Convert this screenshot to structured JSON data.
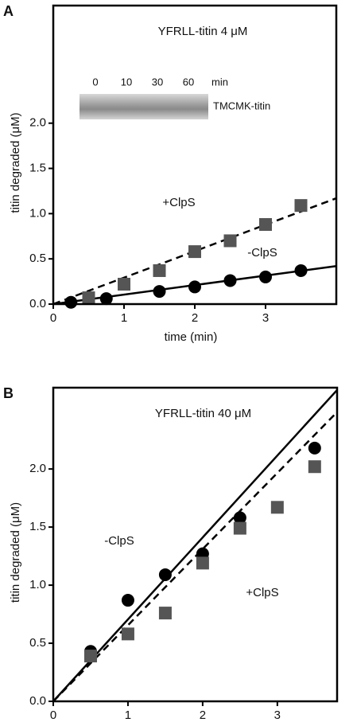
{
  "chart_data": [
    {
      "type": "scatter",
      "panel": "A",
      "title": "YFRLL-titin 4 μM",
      "xlabel": "time (min)",
      "ylabel": "titin degraded (μM)",
      "xlim": [
        0,
        4
      ],
      "ylim": [
        0,
        3.3
      ],
      "xticks": [
        0,
        1,
        2,
        3
      ],
      "yticks": [
        {
          "value": 0,
          "label": "0.0"
        },
        {
          "value": 0.5,
          "label": "0.5"
        },
        {
          "value": 1,
          "label": "1.0"
        },
        {
          "value": 1.5,
          "label": "1.5"
        },
        {
          "value": 2,
          "label": "2.0"
        }
      ],
      "inset": {
        "lanes": [
          "0",
          "10",
          "30",
          "60"
        ],
        "unit": "min",
        "label": "TMCMK-titin"
      },
      "series": [
        {
          "name": "+ClpS",
          "color": "#555555",
          "marker": "square",
          "dash": true,
          "x": [
            0.5,
            1,
            1.5,
            2,
            2.5,
            3,
            3.5
          ],
          "values": [
            0.07,
            0.22,
            0.37,
            0.58,
            0.7,
            0.88,
            1.09
          ],
          "fit_x": [
            0,
            4
          ],
          "fit_values": [
            0,
            1.17
          ]
        },
        {
          "name": "-ClpS",
          "color": "#000000",
          "marker": "circle",
          "dash": false,
          "x": [
            0.25,
            0.75,
            1.5,
            2,
            2.5,
            3,
            3.5
          ],
          "values": [
            0.02,
            0.06,
            0.14,
            0.19,
            0.26,
            0.3,
            0.37
          ],
          "fit_x": [
            0,
            4
          ],
          "fit_values": [
            0,
            0.42
          ]
        }
      ]
    },
    {
      "type": "scatter",
      "panel": "B",
      "title": "YFRLL-titin 40 μM",
      "xlabel": "time (min)",
      "ylabel": "titin degraded (μM)",
      "xlim": [
        0,
        3.8
      ],
      "ylim": [
        0,
        2.7
      ],
      "xticks": [
        0,
        1,
        2,
        3
      ],
      "yticks": [
        {
          "value": 0,
          "label": "0.0"
        },
        {
          "value": 0.5,
          "label": "0.5"
        },
        {
          "value": 1,
          "label": "1.0"
        },
        {
          "value": 1.5,
          "label": "1.5"
        },
        {
          "value": 2,
          "label": "2.0"
        }
      ],
      "series": [
        {
          "name": "-ClpS",
          "color": "#000000",
          "marker": "circle",
          "dash": false,
          "x": [
            0.5,
            1,
            1.5,
            2,
            2.5,
            3.5
          ],
          "values": [
            0.43,
            0.87,
            1.09,
            1.27,
            1.58,
            2.18
          ],
          "fit_x": [
            0,
            3.8
          ],
          "fit_values": [
            0,
            2.68
          ]
        },
        {
          "name": "+ClpS",
          "color": "#555555",
          "marker": "square",
          "dash": true,
          "x": [
            0.5,
            1,
            1.5,
            2,
            2.5,
            3,
            3.5
          ],
          "values": [
            0.39,
            0.58,
            0.76,
            1.19,
            1.49,
            1.67,
            2.02
          ],
          "fit_x": [
            0,
            3.8
          ],
          "fit_values": [
            0,
            2.49
          ]
        }
      ]
    }
  ]
}
